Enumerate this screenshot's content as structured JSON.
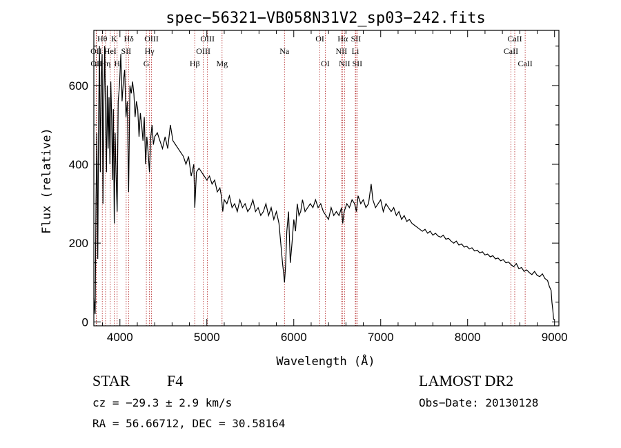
{
  "chart_data": {
    "type": "line",
    "title": "spec−56321−VB058N31V2_sp03−242.fits",
    "xlabel": "Wavelength (Å)",
    "ylabel": "Flux (relative)",
    "xlim": [
      3700,
      9050
    ],
    "ylim": [
      -10,
      740
    ],
    "xticks": [
      4000,
      5000,
      6000,
      7000,
      8000,
      9000
    ],
    "yticks": [
      0,
      200,
      400,
      600
    ],
    "grid": false,
    "series": [
      {
        "color": "#000000",
        "points": [
          [
            3700,
            60
          ],
          [
            3715,
            20
          ],
          [
            3725,
            300
          ],
          [
            3735,
            480
          ],
          [
            3745,
            160
          ],
          [
            3755,
            520
          ],
          [
            3765,
            700
          ],
          [
            3775,
            380
          ],
          [
            3785,
            620
          ],
          [
            3795,
            680
          ],
          [
            3805,
            300
          ],
          [
            3815,
            560
          ],
          [
            3825,
            700
          ],
          [
            3835,
            520
          ],
          [
            3845,
            380
          ],
          [
            3855,
            600
          ],
          [
            3865,
            440
          ],
          [
            3875,
            570
          ],
          [
            3885,
            400
          ],
          [
            3895,
            610
          ],
          [
            3905,
            520
          ],
          [
            3915,
            360
          ],
          [
            3925,
            540
          ],
          [
            3935,
            250
          ],
          [
            3945,
            480
          ],
          [
            3955,
            380
          ],
          [
            3968,
            280
          ],
          [
            3980,
            560
          ],
          [
            3995,
            600
          ],
          [
            4010,
            680
          ],
          [
            4025,
            560
          ],
          [
            4040,
            610
          ],
          [
            4055,
            640
          ],
          [
            4070,
            520
          ],
          [
            4085,
            560
          ],
          [
            4100,
            330
          ],
          [
            4115,
            600
          ],
          [
            4130,
            580
          ],
          [
            4145,
            610
          ],
          [
            4160,
            580
          ],
          [
            4175,
            520
          ],
          [
            4190,
            560
          ],
          [
            4205,
            540
          ],
          [
            4220,
            470
          ],
          [
            4235,
            530
          ],
          [
            4250,
            500
          ],
          [
            4265,
            460
          ],
          [
            4280,
            520
          ],
          [
            4295,
            400
          ],
          [
            4310,
            470
          ],
          [
            4325,
            430
          ],
          [
            4340,
            380
          ],
          [
            4355,
            470
          ],
          [
            4370,
            500
          ],
          [
            4385,
            450
          ],
          [
            4400,
            470
          ],
          [
            4430,
            480
          ],
          [
            4460,
            460
          ],
          [
            4490,
            440
          ],
          [
            4520,
            470
          ],
          [
            4550,
            440
          ],
          [
            4580,
            500
          ],
          [
            4610,
            460
          ],
          [
            4640,
            450
          ],
          [
            4670,
            440
          ],
          [
            4700,
            430
          ],
          [
            4730,
            420
          ],
          [
            4760,
            400
          ],
          [
            4790,
            420
          ],
          [
            4820,
            370
          ],
          [
            4850,
            400
          ],
          [
            4861,
            290
          ],
          [
            4880,
            380
          ],
          [
            4910,
            390
          ],
          [
            4940,
            380
          ],
          [
            4970,
            370
          ],
          [
            5000,
            360
          ],
          [
            5030,
            370
          ],
          [
            5060,
            350
          ],
          [
            5090,
            360
          ],
          [
            5120,
            330
          ],
          [
            5150,
            340
          ],
          [
            5167,
            320
          ],
          [
            5183,
            280
          ],
          [
            5200,
            310
          ],
          [
            5230,
            300
          ],
          [
            5260,
            320
          ],
          [
            5290,
            290
          ],
          [
            5320,
            300
          ],
          [
            5350,
            280
          ],
          [
            5380,
            310
          ],
          [
            5410,
            290
          ],
          [
            5440,
            300
          ],
          [
            5470,
            280
          ],
          [
            5500,
            290
          ],
          [
            5530,
            310
          ],
          [
            5560,
            280
          ],
          [
            5590,
            290
          ],
          [
            5620,
            270
          ],
          [
            5650,
            280
          ],
          [
            5680,
            300
          ],
          [
            5710,
            270
          ],
          [
            5740,
            290
          ],
          [
            5770,
            260
          ],
          [
            5800,
            280
          ],
          [
            5830,
            250
          ],
          [
            5850,
            200
          ],
          [
            5870,
            150
          ],
          [
            5885,
            120
          ],
          [
            5893,
            100
          ],
          [
            5905,
            140
          ],
          [
            5920,
            230
          ],
          [
            5940,
            280
          ],
          [
            5960,
            150
          ],
          [
            5980,
            200
          ],
          [
            6000,
            260
          ],
          [
            6020,
            230
          ],
          [
            6040,
            300
          ],
          [
            6060,
            270
          ],
          [
            6080,
            280
          ],
          [
            6100,
            310
          ],
          [
            6130,
            280
          ],
          [
            6160,
            290
          ],
          [
            6190,
            300
          ],
          [
            6220,
            290
          ],
          [
            6250,
            310
          ],
          [
            6280,
            290
          ],
          [
            6310,
            300
          ],
          [
            6340,
            280
          ],
          [
            6370,
            270
          ],
          [
            6400,
            260
          ],
          [
            6430,
            290
          ],
          [
            6460,
            270
          ],
          [
            6490,
            280
          ],
          [
            6520,
            270
          ],
          [
            6550,
            290
          ],
          [
            6563,
            250
          ],
          [
            6580,
            280
          ],
          [
            6610,
            300
          ],
          [
            6640,
            290
          ],
          [
            6670,
            310
          ],
          [
            6700,
            300
          ],
          [
            6720,
            280
          ],
          [
            6740,
            320
          ],
          [
            6770,
            300
          ],
          [
            6800,
            310
          ],
          [
            6830,
            290
          ],
          [
            6860,
            300
          ],
          [
            6890,
            350
          ],
          [
            6910,
            310
          ],
          [
            6940,
            290
          ],
          [
            6970,
            300
          ],
          [
            7000,
            310
          ],
          [
            7030,
            280
          ],
          [
            7060,
            300
          ],
          [
            7090,
            290
          ],
          [
            7120,
            280
          ],
          [
            7150,
            290
          ],
          [
            7180,
            270
          ],
          [
            7210,
            280
          ],
          [
            7240,
            260
          ],
          [
            7270,
            270
          ],
          [
            7300,
            255
          ],
          [
            7330,
            260
          ],
          [
            7360,
            250
          ],
          [
            7390,
            245
          ],
          [
            7420,
            240
          ],
          [
            7450,
            235
          ],
          [
            7480,
            230
          ],
          [
            7510,
            235
          ],
          [
            7540,
            225
          ],
          [
            7570,
            230
          ],
          [
            7600,
            220
          ],
          [
            7630,
            225
          ],
          [
            7660,
            218
          ],
          [
            7690,
            215
          ],
          [
            7720,
            220
          ],
          [
            7750,
            210
          ],
          [
            7780,
            212
          ],
          [
            7810,
            205
          ],
          [
            7840,
            200
          ],
          [
            7870,
            205
          ],
          [
            7900,
            195
          ],
          [
            7930,
            198
          ],
          [
            7960,
            190
          ],
          [
            7990,
            192
          ],
          [
            8020,
            185
          ],
          [
            8050,
            188
          ],
          [
            8080,
            180
          ],
          [
            8110,
            182
          ],
          [
            8140,
            175
          ],
          [
            8170,
            178
          ],
          [
            8200,
            170
          ],
          [
            8230,
            172
          ],
          [
            8260,
            165
          ],
          [
            8290,
            168
          ],
          [
            8320,
            160
          ],
          [
            8350,
            162
          ],
          [
            8380,
            155
          ],
          [
            8410,
            158
          ],
          [
            8440,
            150
          ],
          [
            8470,
            152
          ],
          [
            8500,
            145
          ],
          [
            8530,
            140
          ],
          [
            8560,
            148
          ],
          [
            8590,
            135
          ],
          [
            8620,
            138
          ],
          [
            8650,
            128
          ],
          [
            8680,
            132
          ],
          [
            8710,
            125
          ],
          [
            8740,
            120
          ],
          [
            8770,
            128
          ],
          [
            8800,
            118
          ],
          [
            8830,
            115
          ],
          [
            8860,
            122
          ],
          [
            8890,
            110
          ],
          [
            8920,
            105
          ],
          [
            8940,
            90
          ],
          [
            8960,
            80
          ],
          [
            8970,
            50
          ],
          [
            8980,
            30
          ],
          [
            8990,
            5
          ]
        ]
      }
    ],
    "lines": [
      {
        "label": "Hθ",
        "wl": 3797,
        "row": 1
      },
      {
        "label": "OII",
        "wl": 3727,
        "row": 2
      },
      {
        "label": "OII",
        "wl": 3729,
        "row": 3
      },
      {
        "label": "Hη",
        "wl": 3835,
        "row": 3
      },
      {
        "label": "HeI",
        "wl": 3889,
        "row": 2
      },
      {
        "label": "K",
        "wl": 3934,
        "row": 1
      },
      {
        "label": "SII",
        "wl": 4072,
        "row": 2
      },
      {
        "label": "H",
        "wl": 3968,
        "row": 3
      },
      {
        "label": "Hδ",
        "wl": 4102,
        "row": 1
      },
      {
        "label": "OIII",
        "wl": 4363,
        "row": 1
      },
      {
        "label": "Hγ",
        "wl": 4340,
        "row": 2
      },
      {
        "label": "G",
        "wl": 4304,
        "row": 3
      },
      {
        "label": "OIII",
        "wl": 5007,
        "row": 1
      },
      {
        "label": "OIII",
        "wl": 4959,
        "row": 2
      },
      {
        "label": "Hβ",
        "wl": 4861,
        "row": 3
      },
      {
        "label": "Mg",
        "wl": 5175,
        "row": 3
      },
      {
        "label": "Na",
        "wl": 5893,
        "row": 2
      },
      {
        "label": "OI",
        "wl": 6300,
        "row": 1
      },
      {
        "label": "OI",
        "wl": 6363,
        "row": 3
      },
      {
        "label": "Hα",
        "wl": 6563,
        "row": 1
      },
      {
        "label": "NII",
        "wl": 6548,
        "row": 2
      },
      {
        "label": "NII",
        "wl": 6584,
        "row": 3
      },
      {
        "label": "SII",
        "wl": 6716,
        "row": 1
      },
      {
        "label": "Li",
        "wl": 6708,
        "row": 2
      },
      {
        "label": "SII",
        "wl": 6731,
        "row": 3
      },
      {
        "label": "CaII",
        "wl": 8542,
        "row": 1
      },
      {
        "label": "CaII",
        "wl": 8498,
        "row": 2
      },
      {
        "label": "CaII",
        "wl": 8662,
        "row": 3
      }
    ]
  },
  "footer": {
    "object_class": "STAR",
    "subclass": "F4",
    "cz": "cz = −29.3 ± 2.9 km/s",
    "radec": "RA =  56.66712, DEC =  30.58164",
    "survey": "LAMOST DR2",
    "obs_date": "Obs−Date: 20130128"
  }
}
